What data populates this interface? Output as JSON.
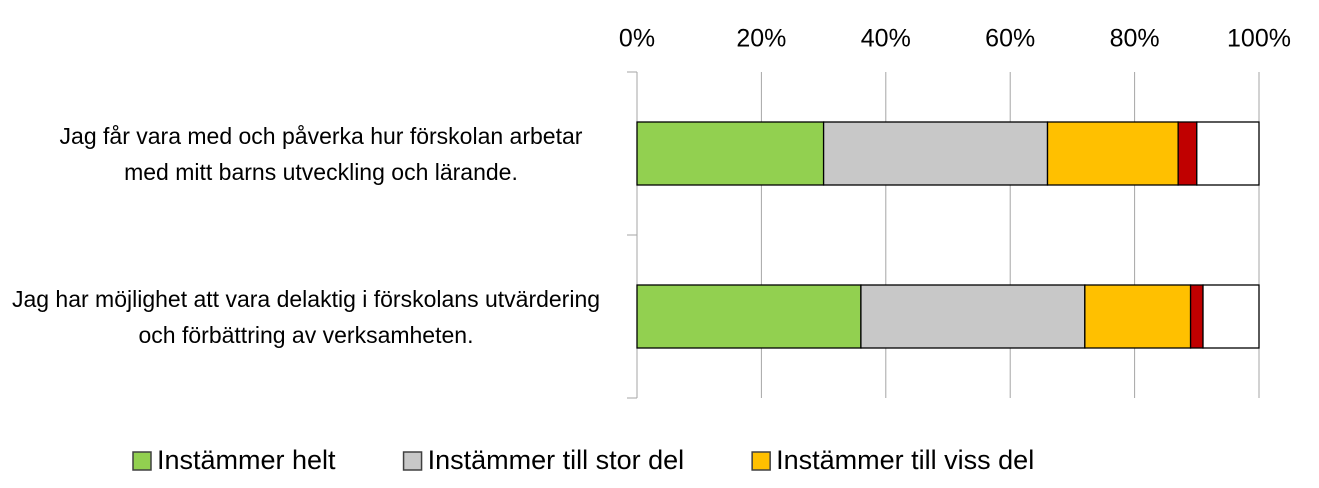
{
  "chart_data": {
    "type": "stacked_barh",
    "categories": [
      "Jag får vara med och påverka hur förskolan arbetar med mitt barns utveckling och lärande.",
      "Jag har möjlighet att vara delaktig i förskolans utvärdering och förbättring av verksamheten."
    ],
    "series": [
      {
        "name": "Instämmer helt",
        "color": "#92d050",
        "values": [
          30,
          36
        ]
      },
      {
        "name": "Instämmer till stor del",
        "color": "#c8c8c8",
        "values": [
          36,
          36
        ]
      },
      {
        "name": "Instämmer till viss del",
        "color": "#ffc000",
        "values": [
          21,
          17
        ]
      },
      {
        "color": "#c00000",
        "values": [
          3,
          2
        ]
      },
      {
        "color": "#ffffff",
        "values": [
          10,
          9
        ]
      }
    ],
    "xlim": [
      0,
      100
    ],
    "xticks": [
      {
        "value": 0,
        "label": "0%"
      },
      {
        "value": 20,
        "label": "20%"
      },
      {
        "value": 40,
        "label": "40%"
      },
      {
        "value": 60,
        "label": "60%"
      },
      {
        "value": 80,
        "label": "80%"
      },
      {
        "value": 100,
        "label": "100%"
      }
    ],
    "grid": true,
    "legend": "bottom"
  }
}
